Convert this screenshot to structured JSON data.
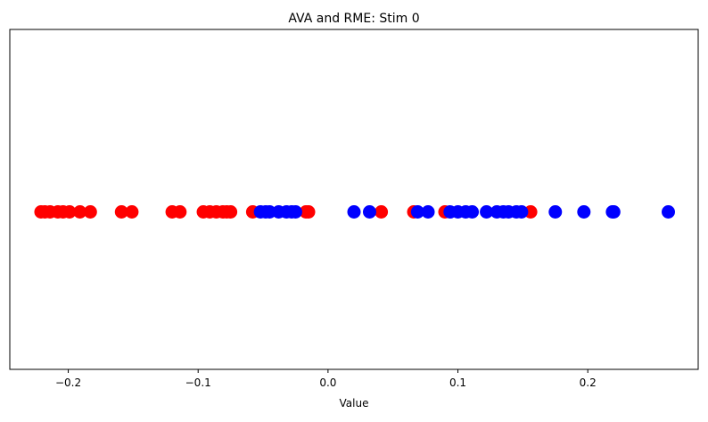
{
  "chart_data": {
    "type": "scatter",
    "title": "AVA and RME: Stim 0",
    "xlabel": "Value",
    "ylabel": "",
    "xlim": [
      -0.245,
      0.285
    ],
    "xticks": [
      {
        "value": -0.2,
        "label": "−0.2"
      },
      {
        "value": -0.1,
        "label": "−0.1"
      },
      {
        "value": 0.0,
        "label": "0.0"
      },
      {
        "value": 0.1,
        "label": "0.1"
      },
      {
        "value": 0.2,
        "label": "0.2"
      }
    ],
    "y_ticks_visible": false,
    "grid": false,
    "legend": false,
    "series": [
      {
        "color": "#ff0000",
        "y": 0,
        "x": [
          -0.221,
          -0.218,
          -0.214,
          -0.208,
          -0.204,
          -0.199,
          -0.191,
          -0.183,
          -0.159,
          -0.151,
          -0.12,
          -0.114,
          -0.096,
          -0.091,
          -0.086,
          -0.081,
          -0.078,
          -0.075,
          -0.058,
          -0.017,
          -0.015,
          0.041,
          0.066,
          0.09,
          0.156
        ]
      },
      {
        "color": "#0000ff",
        "y": 0,
        "x": [
          -0.052,
          -0.048,
          -0.045,
          -0.038,
          -0.032,
          -0.028,
          -0.025,
          0.02,
          0.032,
          0.069,
          0.077,
          0.094,
          0.1,
          0.106,
          0.111,
          0.122,
          0.13,
          0.135,
          0.139,
          0.145,
          0.149,
          0.175,
          0.197,
          0.219,
          0.22,
          0.262
        ]
      }
    ]
  }
}
